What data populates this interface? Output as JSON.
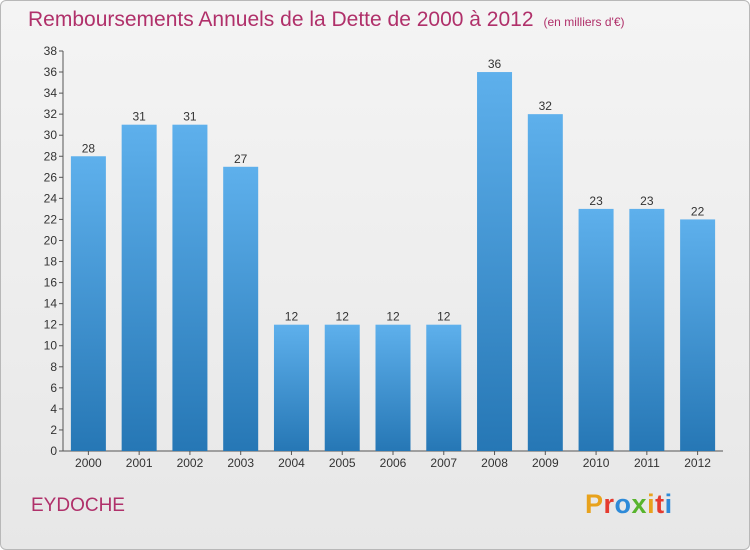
{
  "header": {
    "title": "Remboursements Annuels de la Dette de 2000 à 2012",
    "unit": "(en milliers d'€)"
  },
  "footer": {
    "commune": "EYDOCHE",
    "logo": "Proxiti",
    "logo_colors": [
      "#e8a21c",
      "#e53b2f",
      "#2e8ad8",
      "#58b42d",
      "#e8a21c",
      "#e53b2f",
      "#2e8ad8"
    ]
  },
  "chart_data": {
    "type": "bar",
    "title": "Remboursements Annuels de la Dette de 2000 à 2012",
    "categories": [
      "2000",
      "2001",
      "2002",
      "2003",
      "2004",
      "2005",
      "2006",
      "2007",
      "2008",
      "2009",
      "2010",
      "2011",
      "2012"
    ],
    "values": [
      28,
      31,
      31,
      27,
      12,
      12,
      12,
      12,
      36,
      32,
      23,
      23,
      22
    ],
    "ylim": [
      0,
      38
    ],
    "ytick_step": 2,
    "grid": false,
    "bar_color_top": "#5eb0ec",
    "bar_color_bottom": "#2677b5",
    "title_color": "#b0306a"
  }
}
